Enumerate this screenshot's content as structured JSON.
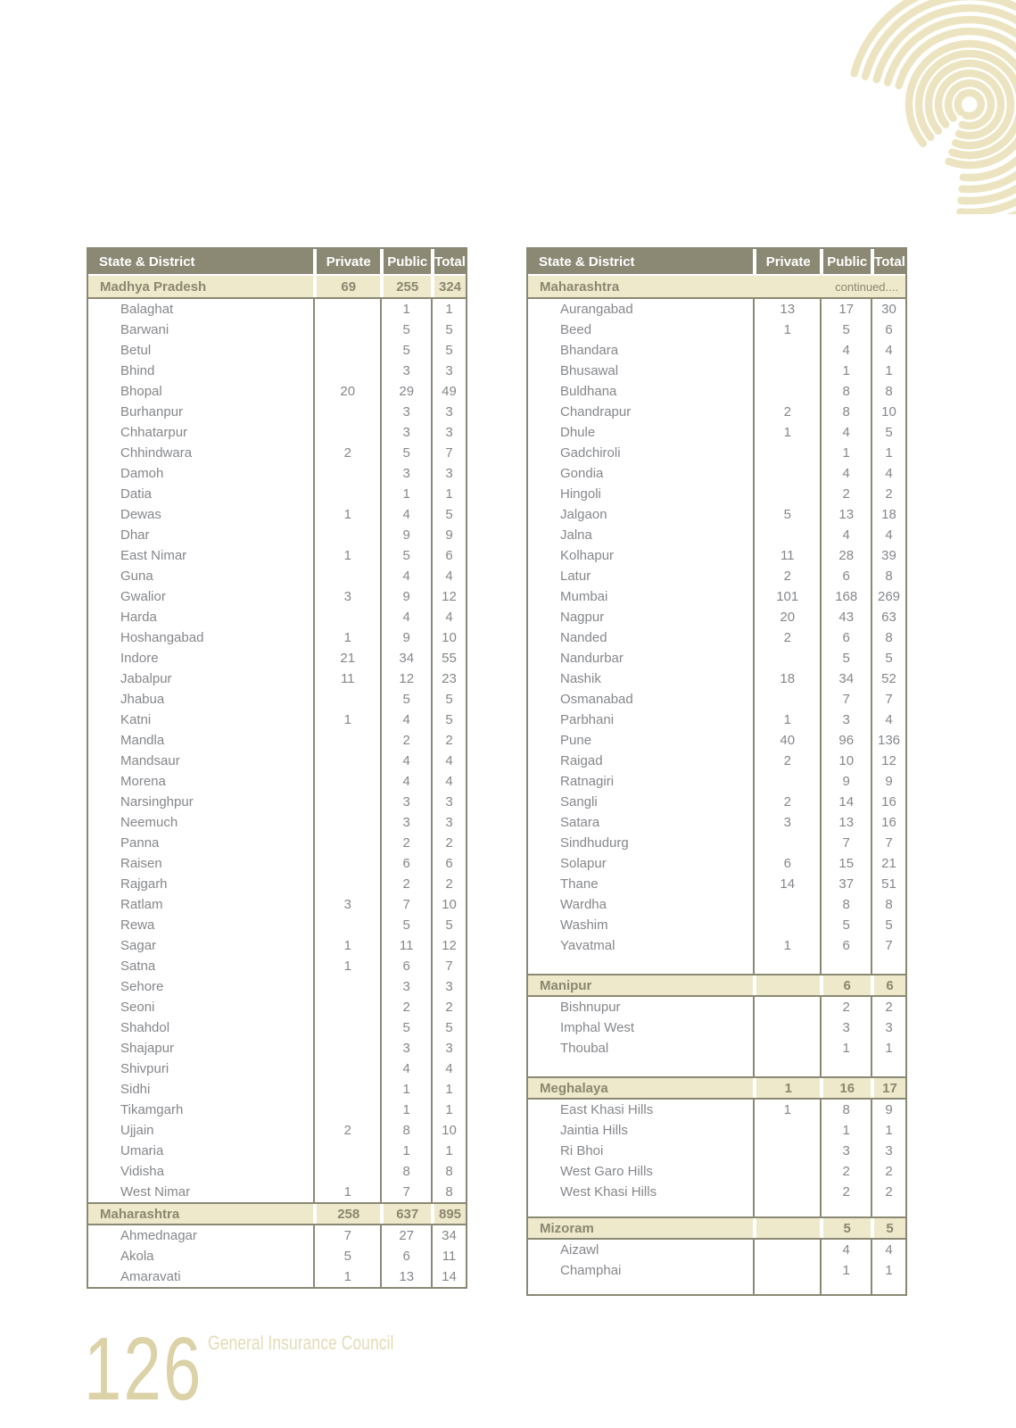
{
  "footer": {
    "page_number": "126",
    "org": "General Insurance Council"
  },
  "colors": {
    "header_bg": "#8b8974",
    "state_row_bg": "#eee9cb",
    "state_text": "#8a8770",
    "district_text": "#85878b",
    "header_text": "#ffffff",
    "footer_beige": "#dcd2a7",
    "footer_beige_light": "#e3dcb8",
    "arc_beige": "#ece4c0",
    "sep_olive": "#8b8974"
  },
  "icons": {
    "top_right": "concentric-arcs-decoration"
  },
  "tables": [
    {
      "headers": [
        "State & District",
        "Private",
        "Public",
        "Total"
      ],
      "sections": [
        {
          "state": "Madhya Pradesh",
          "private": "69",
          "public": "255",
          "total": "324",
          "rows": [
            [
              "Balaghat",
              "",
              "1",
              "1"
            ],
            [
              "Barwani",
              "",
              "5",
              "5"
            ],
            [
              "Betul",
              "",
              "5",
              "5"
            ],
            [
              "Bhind",
              "",
              "3",
              "3"
            ],
            [
              "Bhopal",
              "20",
              "29",
              "49"
            ],
            [
              "Burhanpur",
              "",
              "3",
              "3"
            ],
            [
              "Chhatarpur",
              "",
              "3",
              "3"
            ],
            [
              "Chhindwara",
              "2",
              "5",
              "7"
            ],
            [
              "Damoh",
              "",
              "3",
              "3"
            ],
            [
              "Datia",
              "",
              "1",
              "1"
            ],
            [
              "Dewas",
              "1",
              "4",
              "5"
            ],
            [
              "Dhar",
              "",
              "9",
              "9"
            ],
            [
              "East Nimar",
              "1",
              "5",
              "6"
            ],
            [
              "Guna",
              "",
              "4",
              "4"
            ],
            [
              "Gwalior",
              "3",
              "9",
              "12"
            ],
            [
              "Harda",
              "",
              "4",
              "4"
            ],
            [
              "Hoshangabad",
              "1",
              "9",
              "10"
            ],
            [
              "Indore",
              "21",
              "34",
              "55"
            ],
            [
              "Jabalpur",
              "11",
              "12",
              "23"
            ],
            [
              "Jhabua",
              "",
              "5",
              "5"
            ],
            [
              "Katni",
              "1",
              "4",
              "5"
            ],
            [
              "Mandla",
              "",
              "2",
              "2"
            ],
            [
              "Mandsaur",
              "",
              "4",
              "4"
            ],
            [
              "Morena",
              "",
              "4",
              "4"
            ],
            [
              "Narsinghpur",
              "",
              "3",
              "3"
            ],
            [
              "Neemuch",
              "",
              "3",
              "3"
            ],
            [
              "Panna",
              "",
              "2",
              "2"
            ],
            [
              "Raisen",
              "",
              "6",
              "6"
            ],
            [
              "Rajgarh",
              "",
              "2",
              "2"
            ],
            [
              "Ratlam",
              "3",
              "7",
              "10"
            ],
            [
              "Rewa",
              "",
              "5",
              "5"
            ],
            [
              "Sagar",
              "1",
              "11",
              "12"
            ],
            [
              "Satna",
              "1",
              "6",
              "7"
            ],
            [
              "Sehore",
              "",
              "3",
              "3"
            ],
            [
              "Seoni",
              "",
              "2",
              "2"
            ],
            [
              "Shahdol",
              "",
              "5",
              "5"
            ],
            [
              "Shajapur",
              "",
              "3",
              "3"
            ],
            [
              "Shivpuri",
              "",
              "4",
              "4"
            ],
            [
              "Sidhi",
              "",
              "1",
              "1"
            ],
            [
              "Tikamgarh",
              "",
              "1",
              "1"
            ],
            [
              "Ujjain",
              "2",
              "8",
              "10"
            ],
            [
              "Umaria",
              "",
              "1",
              "1"
            ],
            [
              "Vidisha",
              "",
              "8",
              "8"
            ],
            [
              "West Nimar",
              "1",
              "7",
              "8"
            ]
          ]
        },
        {
          "state": "Maharashtra",
          "private": "258",
          "public": "637",
          "total": "895",
          "rows": [
            [
              "Ahmednagar",
              "7",
              "27",
              "34"
            ],
            [
              "Akola",
              "5",
              "6",
              "11"
            ],
            [
              "Amaravati",
              "1",
              "13",
              "14"
            ]
          ]
        }
      ]
    },
    {
      "headers": [
        "State & District",
        "Private",
        "Public",
        "Total"
      ],
      "tail_gap": 15,
      "sections": [
        {
          "state": "Maharashtra",
          "continued": "continued....",
          "rows": [
            [
              "Aurangabad",
              "13",
              "17",
              "30"
            ],
            [
              "Beed",
              "1",
              "5",
              "6"
            ],
            [
              "Bhandara",
              "",
              "4",
              "4"
            ],
            [
              "Bhusawal",
              "",
              "1",
              "1"
            ],
            [
              "Buldhana",
              "",
              "8",
              "8"
            ],
            [
              "Chandrapur",
              "2",
              "8",
              "10"
            ],
            [
              "Dhule",
              "1",
              "4",
              "5"
            ],
            [
              "Gadchiroli",
              "",
              "1",
              "1"
            ],
            [
              "Gondia",
              "",
              "4",
              "4"
            ],
            [
              "Hingoli",
              "",
              "2",
              "2"
            ],
            [
              "Jalgaon",
              "5",
              "13",
              "18"
            ],
            [
              "Jalna",
              "",
              "4",
              "4"
            ],
            [
              "Kolhapur",
              "11",
              "28",
              "39"
            ],
            [
              "Latur",
              "2",
              "6",
              "8"
            ],
            [
              "Mumbai",
              "101",
              "168",
              "269"
            ],
            [
              "Nagpur",
              "20",
              "43",
              "63"
            ],
            [
              "Nanded",
              "2",
              "6",
              "8"
            ],
            [
              "Nandurbar",
              "",
              "5",
              "5"
            ],
            [
              "Nashik",
              "18",
              "34",
              "52"
            ],
            [
              "Osmanabad",
              "",
              "7",
              "7"
            ],
            [
              "Parbhani",
              "1",
              "3",
              "4"
            ],
            [
              "Pune",
              "40",
              "96",
              "136"
            ],
            [
              "Raigad",
              "2",
              "10",
              "12"
            ],
            [
              "Ratnagiri",
              "",
              "9",
              "9"
            ],
            [
              "Sangli",
              "2",
              "14",
              "16"
            ],
            [
              "Satara",
              "3",
              "13",
              "16"
            ],
            [
              "Sindhudurg",
              "",
              "7",
              "7"
            ],
            [
              "Solapur",
              "6",
              "15",
              "21"
            ],
            [
              "Thane",
              "14",
              "37",
              "51"
            ],
            [
              "Wardha",
              "",
              "8",
              "8"
            ],
            [
              "Washim",
              "",
              "5",
              "5"
            ],
            [
              "Yavatmal",
              "1",
              "6",
              "7"
            ]
          ]
        },
        {
          "state": "Manipur",
          "private": "",
          "public": "6",
          "total": "6",
          "gap_before": 20,
          "rows": [
            [
              "Bishnupur",
              "",
              "2",
              "2"
            ],
            [
              "Imphal West",
              "",
              "3",
              "3"
            ],
            [
              "Thoubal",
              "",
              "1",
              "1"
            ]
          ]
        },
        {
          "state": "Meghalaya",
          "private": "1",
          "public": "16",
          "total": "17",
          "gap_before": 20,
          "rows": [
            [
              "East Khasi Hills",
              "1",
              "8",
              "9"
            ],
            [
              "Jaintia Hills",
              "",
              "1",
              "1"
            ],
            [
              "Ri Bhoi",
              "",
              "3",
              "3"
            ],
            [
              "West Garo Hills",
              "",
              "2",
              "2"
            ],
            [
              "West Khasi Hills",
              "",
              "2",
              "2"
            ]
          ]
        },
        {
          "state": "Mizoram",
          "private": "",
          "public": "5",
          "total": "5",
          "gap_before": 16,
          "rows": [
            [
              "Aizawl",
              "",
              "4",
              "4"
            ],
            [
              "Champhai",
              "",
              "1",
              "1"
            ]
          ]
        }
      ]
    }
  ]
}
